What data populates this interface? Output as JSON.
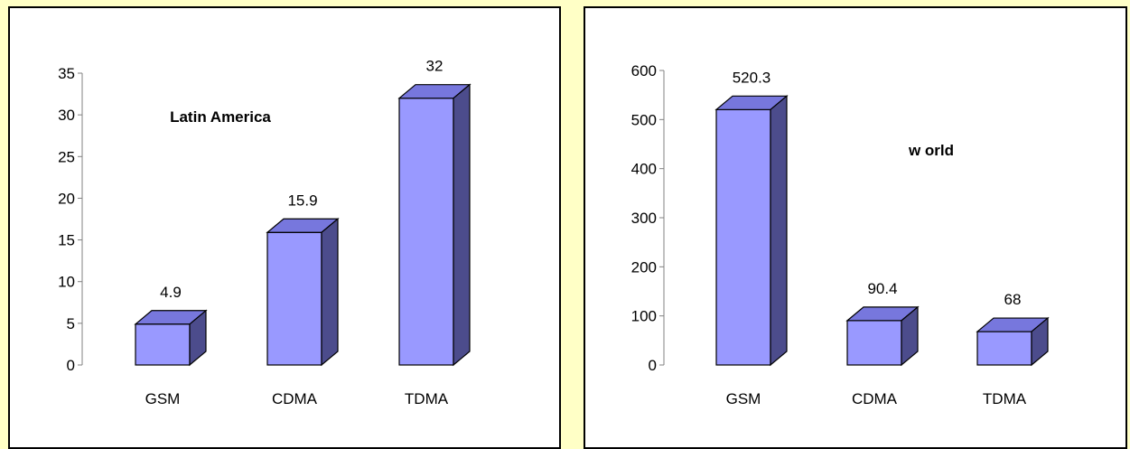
{
  "colors": {
    "background": "#FFFFC6",
    "bar_front": "#9999FF",
    "bar_top": "#7777DD",
    "bar_side": "#4C4C8C"
  },
  "chart_data": [
    {
      "type": "bar",
      "title": "Latin America",
      "categories": [
        "GSM",
        "CDMA",
        "TDMA"
      ],
      "values": [
        4.9,
        15.9,
        32
      ],
      "value_labels": [
        "4.9",
        "15.9",
        "32"
      ],
      "ylim": [
        0,
        35
      ],
      "yticks": [
        0,
        5,
        10,
        15,
        20,
        25,
        30,
        35
      ],
      "grid": false,
      "style": "3d"
    },
    {
      "type": "bar",
      "title": "w orld",
      "categories": [
        "GSM",
        "CDMA",
        "TDMA"
      ],
      "values": [
        520.3,
        90.4,
        68
      ],
      "value_labels": [
        "520.3",
        "90.4",
        "68"
      ],
      "ylim": [
        0,
        600
      ],
      "yticks": [
        0,
        100,
        200,
        300,
        400,
        500,
        600
      ],
      "grid": false,
      "style": "3d"
    }
  ]
}
